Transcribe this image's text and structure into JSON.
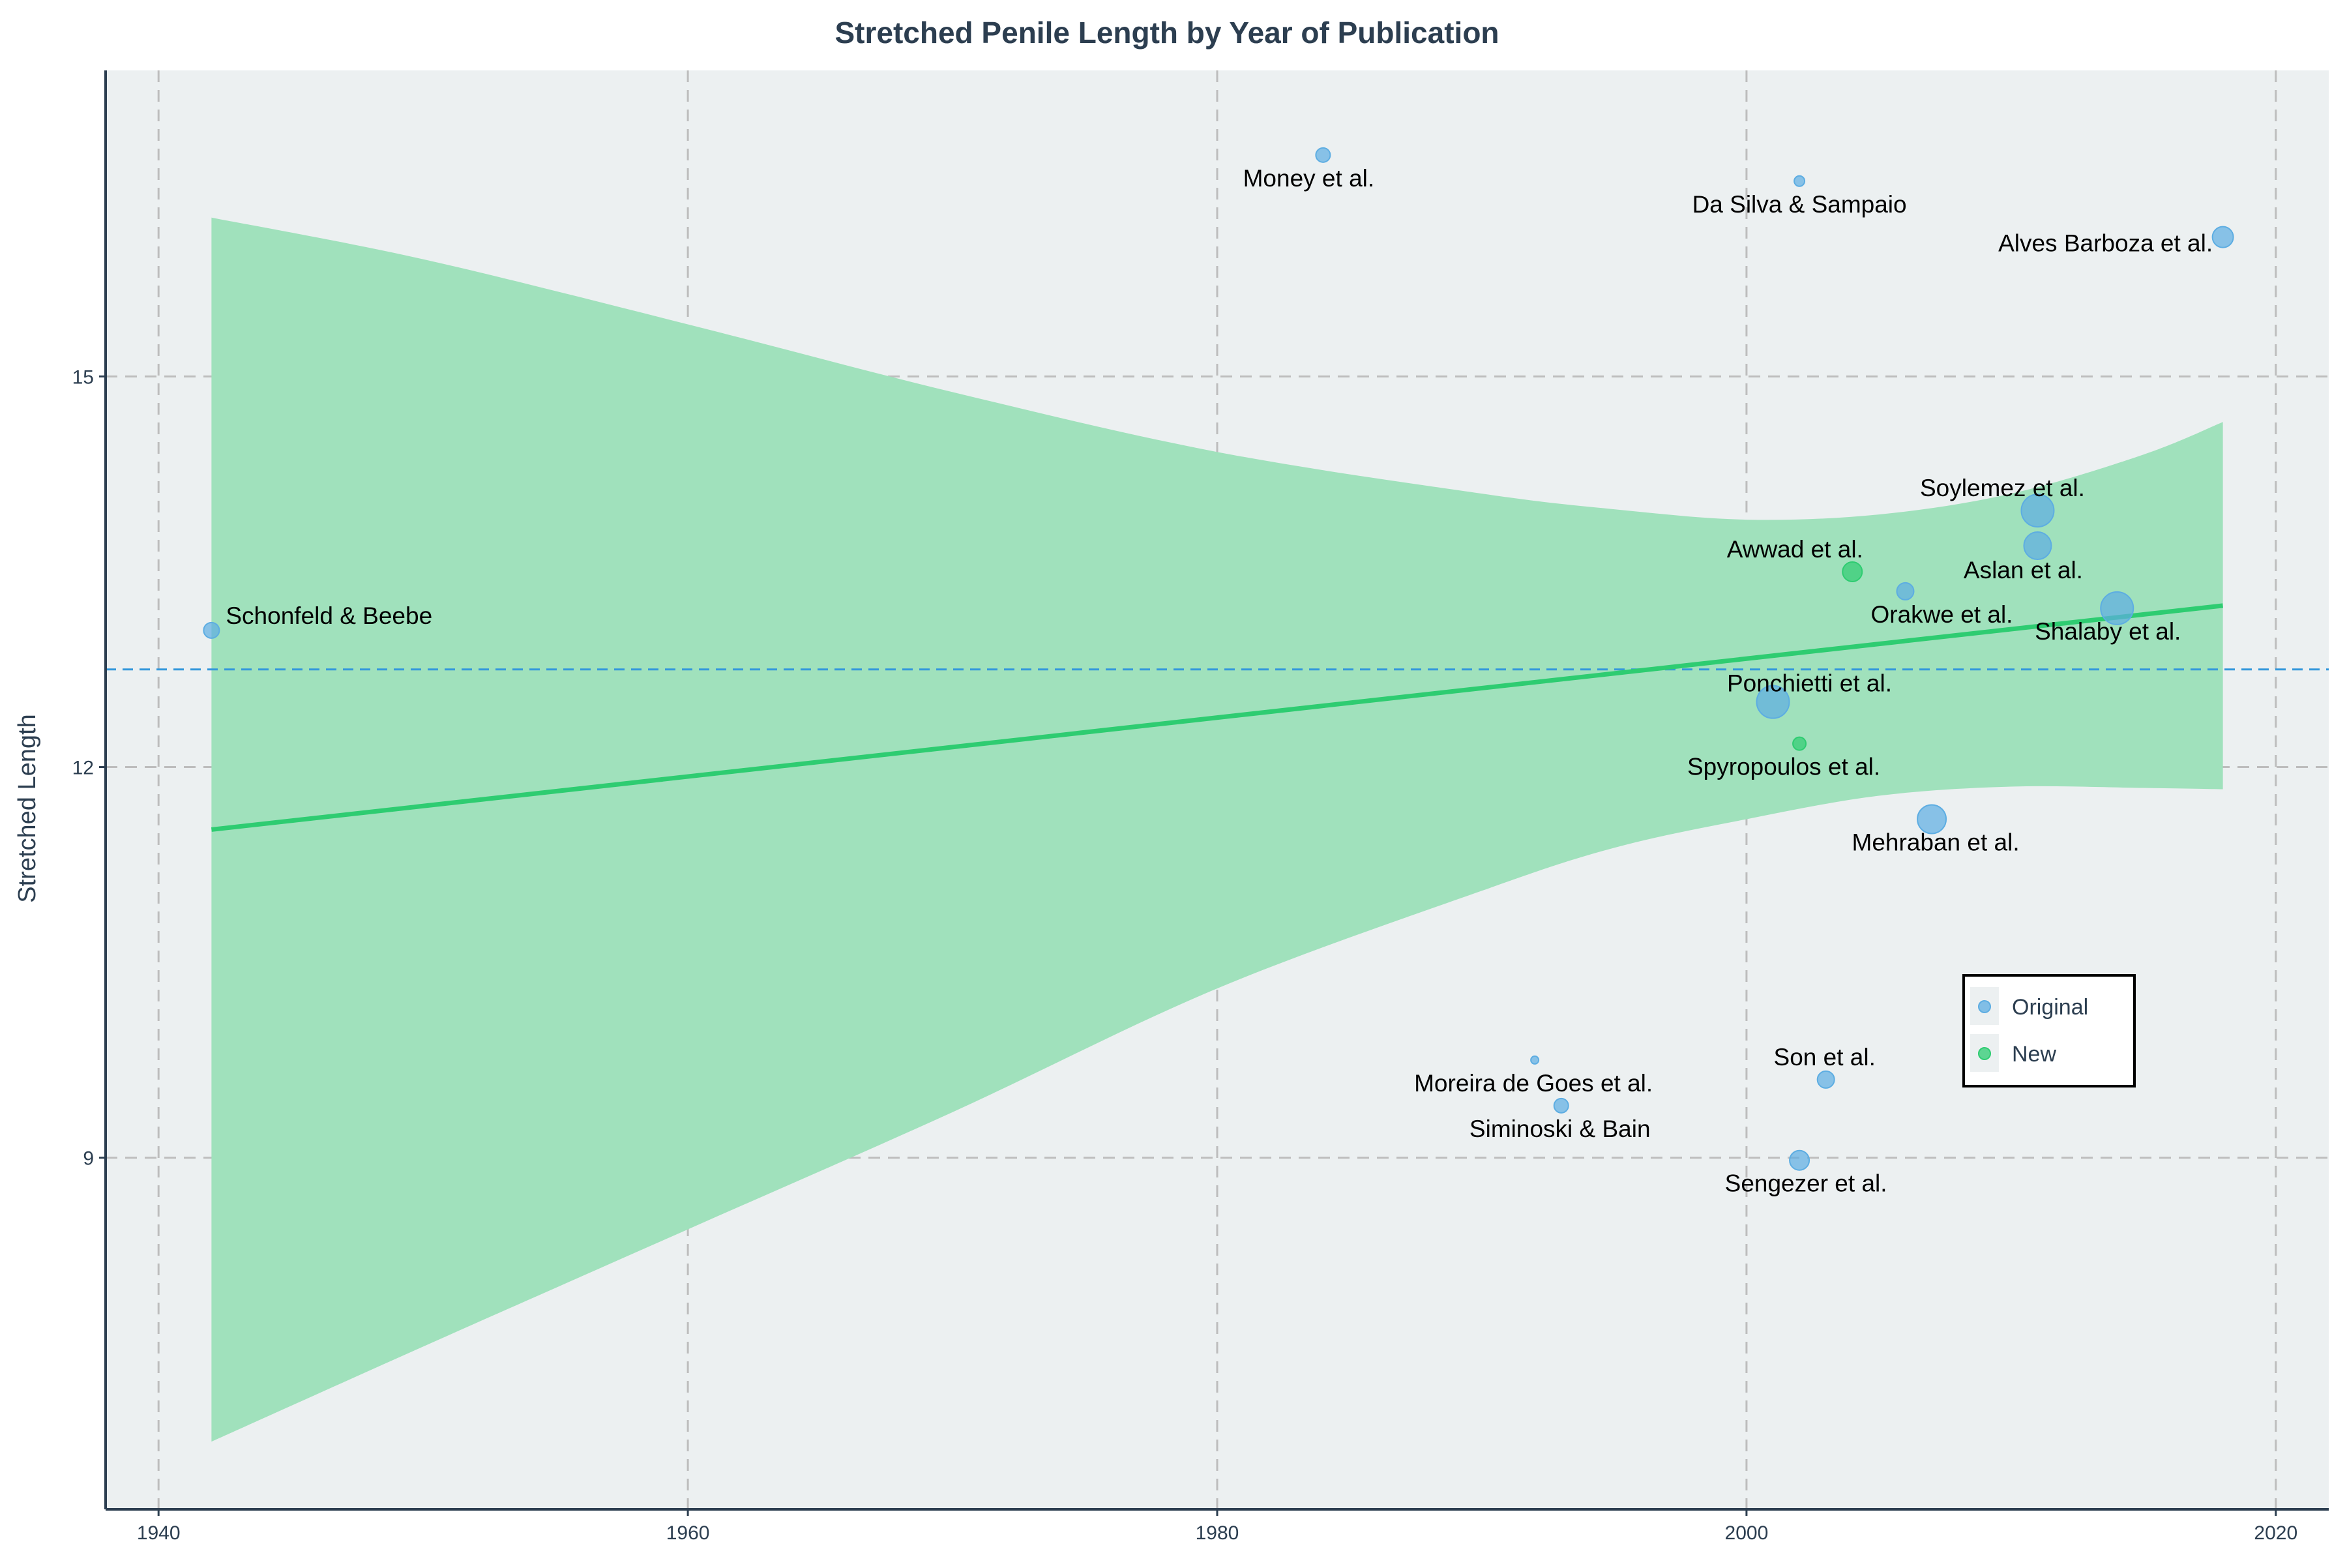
{
  "chart_data": {
    "type": "scatter",
    "title": "Stretched Penile Length by Year of Publication",
    "xlabel": "",
    "ylabel": "Stretched Length",
    "xlim": [
      1938,
      2022
    ],
    "ylim": [
      6.3,
      17.35
    ],
    "x_ticks": [
      1940,
      1960,
      1980,
      2000,
      2020
    ],
    "y_ticks": [
      9,
      12,
      15
    ],
    "grid": true,
    "legend_position": "right",
    "colors": {
      "original": "#5dade2",
      "new": "#2ecc71",
      "trend_line": "#2ecc71",
      "confidence_band": "#a0e1bc",
      "mean_line": "#3498db",
      "plot_background": "#ecf0f1",
      "grid": "#bdbdbd"
    },
    "mean_line_y": 12.75,
    "trend_line": {
      "x": [
        1942,
        2018
      ],
      "y": [
        11.52,
        13.24
      ]
    },
    "confidence_band": {
      "x": [
        1942,
        1950,
        1960,
        1970,
        1980,
        1990,
        1995,
        2000,
        2005,
        2010,
        2015,
        2018
      ],
      "upper": [
        16.22,
        15.9,
        15.4,
        14.88,
        14.42,
        14.1,
        13.98,
        13.9,
        13.94,
        14.1,
        14.4,
        14.65
      ],
      "lower": [
        6.82,
        7.55,
        8.45,
        9.35,
        10.3,
        11.05,
        11.38,
        11.6,
        11.78,
        11.85,
        11.84,
        11.83
      ]
    },
    "series": [
      {
        "name": "Original",
        "points": [
          {
            "x": 1942,
            "y": 13.05,
            "label": "Schonfeld & Beebe",
            "size": 12
          },
          {
            "x": 1984,
            "y": 16.7,
            "label": "Money et al.",
            "size": 11
          },
          {
            "x": 1992,
            "y": 9.75,
            "label": "Moreira de Goes et al.",
            "size": 6
          },
          {
            "x": 1993,
            "y": 9.4,
            "label": "Siminoski & Bain",
            "size": 11
          },
          {
            "x": 2001,
            "y": 12.5,
            "label": "Ponchietti et al.",
            "size": 25
          },
          {
            "x": 2002,
            "y": 16.5,
            "label": "Da Silva & Sampaio",
            "size": 8
          },
          {
            "x": 2002,
            "y": 8.98,
            "label": "Sengezer et al.",
            "size": 15
          },
          {
            "x": 2003,
            "y": 9.6,
            "label": "Son et al.",
            "size": 13
          },
          {
            "x": 2006,
            "y": 13.35,
            "label": "Orakwe et al.",
            "size": 13
          },
          {
            "x": 2007,
            "y": 11.6,
            "label": "Mehraban et al.",
            "size": 22
          },
          {
            "x": 2011,
            "y": 13.97,
            "label": "Soylemez et al.",
            "size": 25
          },
          {
            "x": 2011,
            "y": 13.7,
            "label": "Aslan et al.",
            "size": 21
          },
          {
            "x": 2014,
            "y": 13.22,
            "label": "Shalaby et al.",
            "size": 25
          },
          {
            "x": 2018,
            "y": 16.07,
            "label": "Alves Barboza et al.",
            "size": 16
          }
        ]
      },
      {
        "name": "New",
        "points": [
          {
            "x": 2002,
            "y": 12.18,
            "label": "Spyropoulos et al.",
            "size": 10
          },
          {
            "x": 2004,
            "y": 13.5,
            "label": "Awwad et al.",
            "size": 15
          }
        ]
      }
    ]
  }
}
